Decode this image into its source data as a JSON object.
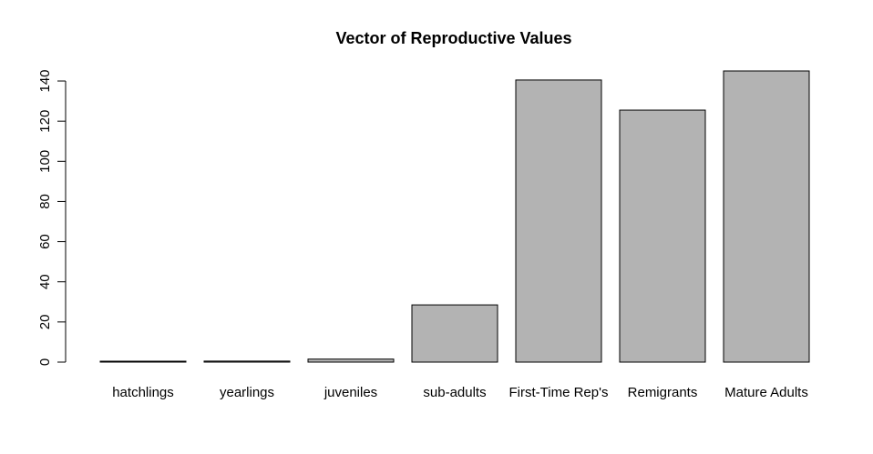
{
  "chart_data": {
    "type": "bar",
    "title": "Vector of Reproductive Values",
    "xlabel": "",
    "ylabel": "",
    "categories": [
      "hatchlings",
      "yearlings",
      "juveniles",
      "sub-adults",
      "First-Time Rep's",
      "Remigrants",
      "Mature Adults"
    ],
    "values": [
      0.2,
      0.5,
      1.5,
      28.5,
      140.5,
      125.5,
      145
    ],
    "ylim": [
      0,
      145
    ],
    "yticks": [
      0,
      20,
      40,
      60,
      80,
      100,
      120,
      140
    ],
    "bar_color": "#b3b3b3",
    "grid": false,
    "legend": "none"
  }
}
